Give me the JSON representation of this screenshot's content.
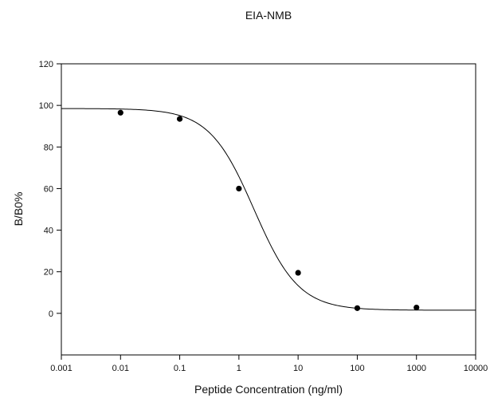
{
  "chart_data": {
    "type": "scatter",
    "title": "EIA-NMB",
    "xlabel": "Peptide Concentration (ng/ml)",
    "ylabel": "B/B0%",
    "x_scale": "log",
    "xlim": [
      0.001,
      10000
    ],
    "ylim": [
      -20,
      120
    ],
    "x_ticks": [
      0.001,
      0.01,
      0.1,
      1,
      10,
      100,
      1000,
      10000
    ],
    "x_tick_labels": [
      "0.001",
      "0.01",
      "0.1",
      "1",
      "10",
      "100",
      "1000",
      "10000"
    ],
    "y_ticks": [
      0,
      20,
      40,
      60,
      80,
      100,
      120
    ],
    "y_tick_labels": [
      "0",
      "20",
      "40",
      "60",
      "80",
      "100",
      "120"
    ],
    "grid": false,
    "series": [
      {
        "kind": "points",
        "x": [
          0.01,
          0.1,
          1,
          10,
          100,
          1000
        ],
        "y": [
          96.5,
          93.5,
          60,
          19.5,
          2.5,
          2.8
        ]
      },
      {
        "kind": "fitted_curve",
        "model": "4-parameter logistic",
        "top": 98.5,
        "bottom": 1.5,
        "ec50": 1.8,
        "hill_slope": 1.15,
        "x_range": [
          0.001,
          10000
        ]
      }
    ],
    "colors": {
      "points": "#000000",
      "curve": "#000000",
      "axes": "#000000"
    }
  }
}
